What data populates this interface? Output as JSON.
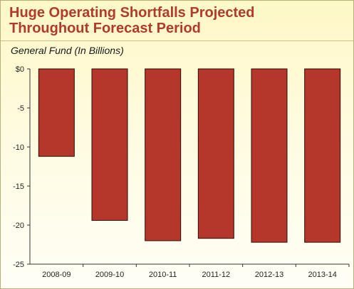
{
  "header": {
    "title_line1": "Huge Operating Shortfalls Projected",
    "title_line2": "Throughout Forecast Period",
    "subtitle": "General Fund (In Billions)"
  },
  "colors": {
    "bar": "#b5362a",
    "bar_stroke": "#2a0e0a",
    "title": "#b03a2b"
  },
  "chart_data": {
    "type": "bar",
    "title": "Huge Operating Shortfalls Projected Throughout Forecast Period",
    "subtitle": "General Fund (In Billions)",
    "categories": [
      "2008-09",
      "2009-10",
      "2010-11",
      "2011-12",
      "2012-13",
      "2013-14"
    ],
    "values": [
      -11.2,
      -19.4,
      -22.0,
      -21.7,
      -22.2,
      -22.2
    ],
    "ylim": [
      -25,
      0
    ],
    "yticks": [
      0,
      -5,
      -10,
      -15,
      -20,
      -25
    ],
    "ytick_labels": [
      "$0",
      "-5",
      "-10",
      "-15",
      "-20",
      "-25"
    ],
    "xlabel": "",
    "ylabel": "",
    "grid": false,
    "legend": "none"
  }
}
